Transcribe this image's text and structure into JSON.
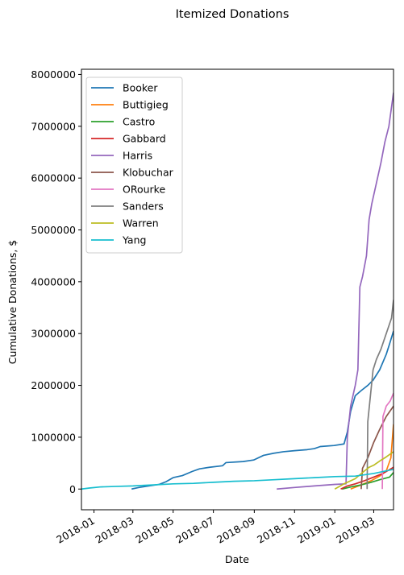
{
  "chart_data": {
    "type": "line",
    "title": "Itemized Donations",
    "xlabel": "Date",
    "ylabel": "Cumulative Donations, $",
    "xlim": [
      "2017-12-13",
      "2019-03-31"
    ],
    "ylim": [
      -400000,
      8100000
    ],
    "x_ticks": [
      {
        "date": "2018-01-01",
        "label": "2018-01"
      },
      {
        "date": "2018-03-01",
        "label": "2018-03"
      },
      {
        "date": "2018-05-01",
        "label": "2018-05"
      },
      {
        "date": "2018-07-01",
        "label": "2018-07"
      },
      {
        "date": "2018-09-01",
        "label": "2018-09"
      },
      {
        "date": "2018-11-01",
        "label": "2018-11"
      },
      {
        "date": "2019-01-01",
        "label": "2019-01"
      },
      {
        "date": "2019-03-01",
        "label": "2019-03"
      }
    ],
    "y_ticks": [
      {
        "value": 0,
        "label": "0"
      },
      {
        "value": 1000000,
        "label": "1000000"
      },
      {
        "value": 2000000,
        "label": "2000000"
      },
      {
        "value": 3000000,
        "label": "3000000"
      },
      {
        "value": 4000000,
        "label": "4000000"
      },
      {
        "value": 5000000,
        "label": "5000000"
      },
      {
        "value": 6000000,
        "label": "6000000"
      },
      {
        "value": 7000000,
        "label": "7000000"
      },
      {
        "value": 8000000,
        "label": "8000000"
      }
    ],
    "grid": false,
    "legend_position": "top-left",
    "series": [
      {
        "name": "Booker",
        "color": "#1f77b4",
        "points": [
          [
            "2018-02-27",
            0
          ],
          [
            "2018-03-10",
            30000
          ],
          [
            "2018-03-25",
            60000
          ],
          [
            "2018-04-10",
            90000
          ],
          [
            "2018-04-20",
            140000
          ],
          [
            "2018-05-01",
            220000
          ],
          [
            "2018-05-15",
            260000
          ],
          [
            "2018-05-30",
            340000
          ],
          [
            "2018-06-10",
            390000
          ],
          [
            "2018-06-25",
            420000
          ],
          [
            "2018-07-15",
            450000
          ],
          [
            "2018-07-20",
            510000
          ],
          [
            "2018-08-15",
            530000
          ],
          [
            "2018-08-31",
            560000
          ],
          [
            "2018-09-15",
            650000
          ],
          [
            "2018-09-30",
            690000
          ],
          [
            "2018-10-15",
            720000
          ],
          [
            "2018-11-01",
            740000
          ],
          [
            "2018-11-20",
            760000
          ],
          [
            "2018-12-01",
            780000
          ],
          [
            "2018-12-10",
            820000
          ],
          [
            "2018-12-31",
            840000
          ],
          [
            "2019-01-15",
            870000
          ],
          [
            "2019-01-20",
            1100000
          ],
          [
            "2019-01-25",
            1500000
          ],
          [
            "2019-02-01",
            1800000
          ],
          [
            "2019-02-10",
            1900000
          ],
          [
            "2019-02-20",
            2000000
          ],
          [
            "2019-02-28",
            2100000
          ],
          [
            "2019-03-10",
            2300000
          ],
          [
            "2019-03-20",
            2600000
          ],
          [
            "2019-03-25",
            2800000
          ],
          [
            "2019-03-31",
            3050000
          ]
        ]
      },
      {
        "name": "Buttigieg",
        "color": "#ff7f0e",
        "points": [
          [
            "2019-01-25",
            0
          ],
          [
            "2019-02-10",
            80000
          ],
          [
            "2019-02-25",
            160000
          ],
          [
            "2019-03-10",
            250000
          ],
          [
            "2019-03-20",
            350000
          ],
          [
            "2019-03-27",
            600000
          ],
          [
            "2019-03-31",
            1250000
          ]
        ]
      },
      {
        "name": "Castro",
        "color": "#2ca02c",
        "points": [
          [
            "2019-01-12",
            0
          ],
          [
            "2019-01-25",
            40000
          ],
          [
            "2019-02-10",
            80000
          ],
          [
            "2019-02-25",
            130000
          ],
          [
            "2019-03-10",
            180000
          ],
          [
            "2019-03-25",
            230000
          ],
          [
            "2019-03-31",
            320000
          ]
        ]
      },
      {
        "name": "Gabbard",
        "color": "#d62728",
        "points": [
          [
            "2019-01-10",
            0
          ],
          [
            "2019-01-20",
            60000
          ],
          [
            "2019-02-01",
            100000
          ],
          [
            "2019-02-15",
            160000
          ],
          [
            "2019-03-01",
            230000
          ],
          [
            "2019-03-15",
            300000
          ],
          [
            "2019-03-31",
            420000
          ]
        ]
      },
      {
        "name": "Harris",
        "color": "#9467bd",
        "points": [
          [
            "2018-10-05",
            0
          ],
          [
            "2018-11-01",
            30000
          ],
          [
            "2018-12-01",
            60000
          ],
          [
            "2019-01-01",
            90000
          ],
          [
            "2019-01-18",
            100000
          ],
          [
            "2019-01-20",
            1000000
          ],
          [
            "2019-01-25",
            1600000
          ],
          [
            "2019-02-01",
            2000000
          ],
          [
            "2019-02-05",
            2300000
          ],
          [
            "2019-02-08",
            3900000
          ],
          [
            "2019-02-12",
            4100000
          ],
          [
            "2019-02-18",
            4500000
          ],
          [
            "2019-02-22",
            5200000
          ],
          [
            "2019-02-26",
            5500000
          ],
          [
            "2019-03-05",
            5900000
          ],
          [
            "2019-03-12",
            6300000
          ],
          [
            "2019-03-18",
            6700000
          ],
          [
            "2019-03-24",
            7000000
          ],
          [
            "2019-03-31",
            7650000
          ]
        ]
      },
      {
        "name": "Klobuchar",
        "color": "#8c564b",
        "points": [
          [
            "2019-02-10",
            0
          ],
          [
            "2019-02-12",
            400000
          ],
          [
            "2019-02-20",
            600000
          ],
          [
            "2019-03-01",
            900000
          ],
          [
            "2019-03-10",
            1150000
          ],
          [
            "2019-03-20",
            1400000
          ],
          [
            "2019-03-31",
            1600000
          ]
        ]
      },
      {
        "name": "ORourke",
        "color": "#e377c2",
        "points": [
          [
            "2019-03-14",
            0
          ],
          [
            "2019-03-15",
            1400000
          ],
          [
            "2019-03-20",
            1600000
          ],
          [
            "2019-03-26",
            1700000
          ],
          [
            "2019-03-31",
            1850000
          ]
        ]
      },
      {
        "name": "Sanders",
        "color": "#7f7f7f",
        "points": [
          [
            "2019-02-19",
            0
          ],
          [
            "2019-02-20",
            1300000
          ],
          [
            "2019-02-28",
            2300000
          ],
          [
            "2019-03-05",
            2500000
          ],
          [
            "2019-03-12",
            2700000
          ],
          [
            "2019-03-20",
            3000000
          ],
          [
            "2019-03-28",
            3300000
          ],
          [
            "2019-03-31",
            3650000
          ]
        ]
      },
      {
        "name": "Warren",
        "color": "#bcbd22",
        "points": [
          [
            "2019-01-01",
            0
          ],
          [
            "2019-01-15",
            100000
          ],
          [
            "2019-02-01",
            200000
          ],
          [
            "2019-02-15",
            350000
          ],
          [
            "2019-02-22",
            420000
          ],
          [
            "2019-03-01",
            460000
          ],
          [
            "2019-03-10",
            540000
          ],
          [
            "2019-03-20",
            620000
          ],
          [
            "2019-03-31",
            720000
          ]
        ]
      },
      {
        "name": "Yang",
        "color": "#17becf",
        "points": [
          [
            "2017-12-13",
            0
          ],
          [
            "2017-12-25",
            20000
          ],
          [
            "2018-01-10",
            40000
          ],
          [
            "2018-02-01",
            50000
          ],
          [
            "2018-03-01",
            60000
          ],
          [
            "2018-04-01",
            80000
          ],
          [
            "2018-05-01",
            100000
          ],
          [
            "2018-06-01",
            110000
          ],
          [
            "2018-07-01",
            130000
          ],
          [
            "2018-08-01",
            150000
          ],
          [
            "2018-09-01",
            160000
          ],
          [
            "2018-10-01",
            180000
          ],
          [
            "2018-11-01",
            200000
          ],
          [
            "2018-12-01",
            220000
          ],
          [
            "2019-01-01",
            240000
          ],
          [
            "2019-02-01",
            250000
          ],
          [
            "2019-03-01",
            300000
          ],
          [
            "2019-03-31",
            380000
          ]
        ]
      }
    ]
  }
}
